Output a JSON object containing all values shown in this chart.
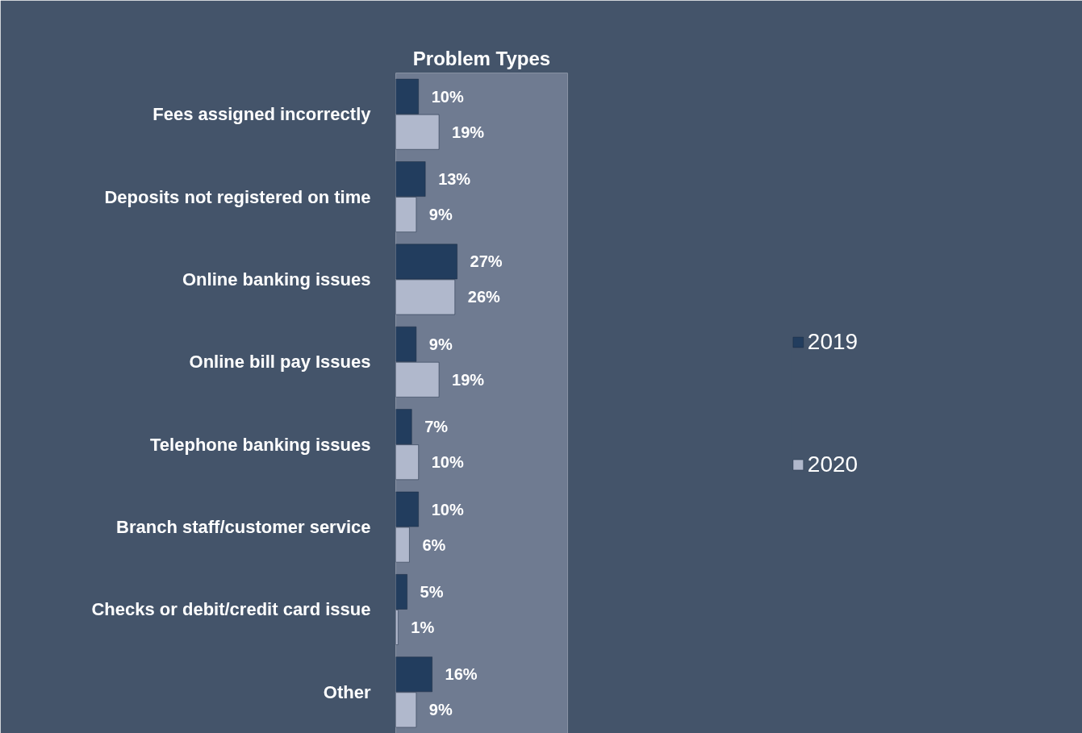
{
  "chart_data": {
    "type": "bar",
    "orientation": "horizontal",
    "title": "Problem Types",
    "categories": [
      "Fees assigned incorrectly",
      "Deposits not registered on time",
      "Online banking issues",
      "Online bill pay Issues",
      "Telephone banking issues",
      "Branch staff/customer service",
      "Checks or debit/credit card issue",
      "Other"
    ],
    "series": [
      {
        "name": "2019",
        "color": "#223d5e",
        "values": [
          10,
          13,
          27,
          9,
          7,
          10,
          5,
          16
        ],
        "value_labels": [
          "10%",
          "13%",
          "27%",
          "9%",
          "7%",
          "10%",
          "5%",
          "16%"
        ]
      },
      {
        "name": "2020",
        "color": "#b0b8cc",
        "values": [
          19,
          9,
          26,
          19,
          10,
          6,
          1,
          9
        ],
        "value_labels": [
          "19%",
          "9%",
          "26%",
          "19%",
          "10%",
          "6%",
          "1%",
          "9%"
        ]
      }
    ],
    "legend": "right",
    "grid": false
  }
}
